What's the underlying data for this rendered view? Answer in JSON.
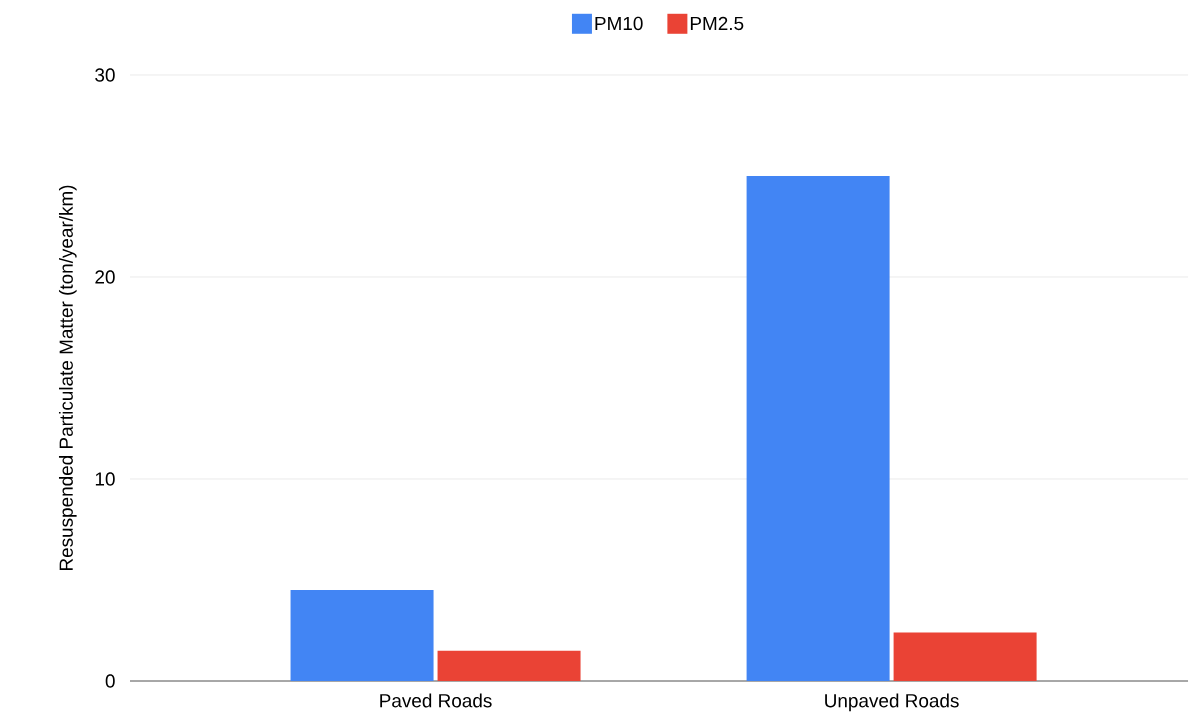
{
  "chart_data": {
    "type": "bar",
    "ylabel": "Resuspended Particulate Matter (ton/year/km)",
    "categories": [
      "Paved Roads",
      "Unpaved Roads"
    ],
    "series": [
      {
        "name": "PM10",
        "color": "#4285f4",
        "values": [
          4.5,
          25.0
        ]
      },
      {
        "name": "PM2.5",
        "color": "#ea4335",
        "values": [
          1.5,
          2.4
        ]
      }
    ],
    "ylim": [
      0,
      30
    ],
    "yticks": [
      0,
      10,
      20,
      30
    ],
    "grid": "y",
    "legend": "top"
  }
}
